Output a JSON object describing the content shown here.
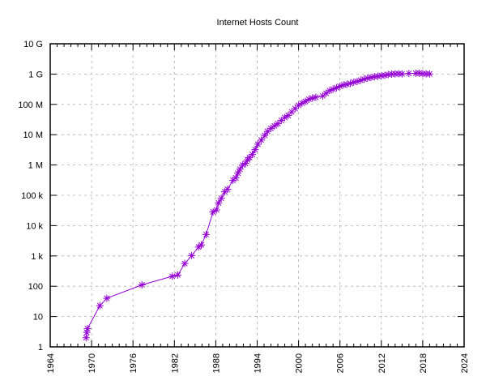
{
  "chart_data": {
    "type": "line",
    "title": "Internet Hosts Count",
    "xlabel": "",
    "ylabel": "",
    "xlim": [
      1964,
      2024
    ],
    "ylim": [
      1,
      10000000000
    ],
    "yscale": "log",
    "grid": true,
    "marker": "asterisk",
    "color": "#9400d3",
    "x_ticks": [
      "1964",
      "1970",
      "1976",
      "1982",
      "1988",
      "1994",
      "2000",
      "2006",
      "2012",
      "2018",
      "2024"
    ],
    "y_ticks": [
      "1",
      "10",
      "100",
      "1 k",
      "10 k",
      "100 k",
      "1 M",
      "10 M",
      "100 M",
      "1 G",
      "10 G"
    ],
    "points": [
      [
        1969.2,
        2
      ],
      [
        1969.3,
        3
      ],
      [
        1969.4,
        4
      ],
      [
        1971.2,
        23
      ],
      [
        1972.2,
        40
      ],
      [
        1977.3,
        111
      ],
      [
        1981.7,
        213
      ],
      [
        1982.5,
        235
      ],
      [
        1983.5,
        562
      ],
      [
        1984.5,
        1024
      ],
      [
        1985.5,
        1961
      ],
      [
        1985.9,
        2308
      ],
      [
        1986.6,
        5089
      ],
      [
        1987.6,
        28174
      ],
      [
        1988.1,
        33000
      ],
      [
        1988.4,
        56000
      ],
      [
        1988.8,
        80000
      ],
      [
        1989.3,
        130000
      ],
      [
        1989.7,
        159000
      ],
      [
        1990.5,
        313000
      ],
      [
        1990.9,
        376000
      ],
      [
        1991.2,
        535000
      ],
      [
        1991.5,
        727000
      ],
      [
        1991.9,
        992000
      ],
      [
        1992.3,
        1136000
      ],
      [
        1992.6,
        1486000
      ],
      [
        1992.9,
        1776000
      ],
      [
        1993.3,
        2217000
      ],
      [
        1993.7,
        3212000
      ],
      [
        1994.1,
        4852000
      ],
      [
        1994.6,
        6642000
      ],
      [
        1995.1,
        9472000
      ],
      [
        1995.5,
        12881000
      ],
      [
        1996.0,
        16146000
      ],
      [
        1996.5,
        19540000
      ],
      [
        1997.0,
        23000000
      ],
      [
        1997.5,
        29670000
      ],
      [
        1998.0,
        36739000
      ],
      [
        1998.5,
        43230000
      ],
      [
        1999.0,
        56218000
      ],
      [
        1999.5,
        72398000
      ],
      [
        2000.0,
        93047000
      ],
      [
        2000.5,
        109574000
      ],
      [
        2001.0,
        125888000
      ],
      [
        2001.5,
        147344000
      ],
      [
        2002.0,
        162128000
      ],
      [
        2002.5,
        171638000
      ],
      [
        2003.5,
        190000000
      ],
      [
        2004.0,
        233101000
      ],
      [
        2004.5,
        285139000
      ],
      [
        2005.0,
        317646000
      ],
      [
        2005.5,
        353284000
      ],
      [
        2006.0,
        394991000
      ],
      [
        2006.5,
        439286000
      ],
      [
        2007.0,
        460000000
      ],
      [
        2007.5,
        489774000
      ],
      [
        2008.0,
        541677000
      ],
      [
        2008.5,
        570937000
      ],
      [
        2009.0,
        625226000
      ],
      [
        2009.5,
        681064000
      ],
      [
        2010.0,
        732740000
      ],
      [
        2010.5,
        768913000
      ],
      [
        2011.0,
        818374000
      ],
      [
        2011.5,
        849869000
      ],
      [
        2012.0,
        888239000
      ],
      [
        2012.5,
        908585000
      ],
      [
        2013.0,
        963518000
      ],
      [
        2013.5,
        996230000
      ],
      [
        2014.0,
        1010251000
      ],
      [
        2014.5,
        1028544000
      ],
      [
        2015.0,
        1012706000
      ],
      [
        2016.0,
        1048766000
      ],
      [
        2017.0,
        1062660000
      ],
      [
        2017.5,
        1066000000
      ],
      [
        2018.0,
        1030000000
      ],
      [
        2018.5,
        1015000000
      ],
      [
        2019.0,
        1013000000
      ]
    ]
  }
}
